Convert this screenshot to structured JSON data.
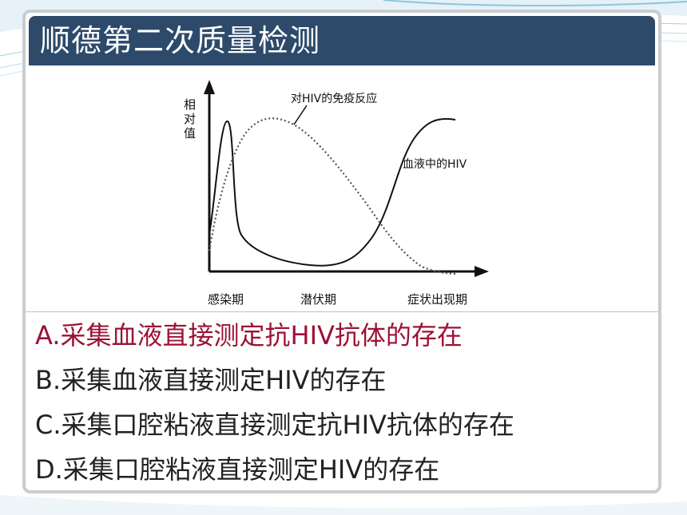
{
  "slide": {
    "title": "顺德第二次质量检测"
  },
  "figure": {
    "y_label_chars": [
      "相",
      "对",
      "值"
    ],
    "series_labels": {
      "immune_response": "对HIV的免疫反应",
      "blood_hiv": "血液中的HIV"
    },
    "x_labels": [
      "感染期",
      "潜伏期",
      "症状出现期"
    ]
  },
  "options": [
    {
      "text": "A.采集血液直接测定抗HIV抗体的存在",
      "highlighted": true,
      "color": "#9b1236"
    },
    {
      "text": "B.采集血液直接测定HIV的存在",
      "highlighted": false,
      "color": "#222222"
    },
    {
      "text": "C.采集口腔粘液直接测定抗HIV抗体的存在",
      "highlighted": false,
      "color": "#222222"
    },
    {
      "text": "D.采集口腔粘液直接测定HIV的存在",
      "highlighted": false,
      "color": "#222222"
    }
  ],
  "colors": {
    "title_bar": "#2d4a6b",
    "frame_border": "#c8cdd0",
    "highlight": "#9b1236"
  }
}
